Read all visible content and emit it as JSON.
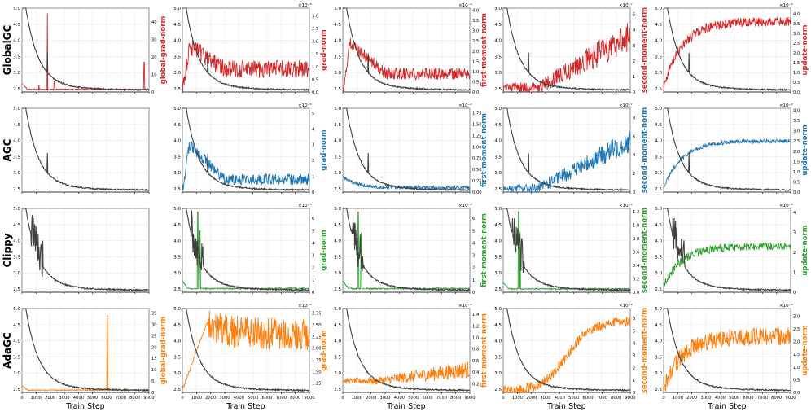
{
  "chart_data": {
    "type": "line",
    "title": "",
    "shared_xlabel": "Train Step",
    "x_ticks": [
      0,
      1000,
      2000,
      3000,
      4000,
      5000,
      6000,
      7000,
      8000,
      9000
    ],
    "xlim": [
      0,
      9000
    ],
    "loss_axis": {
      "ylim": [
        2.4,
        5.0
      ],
      "ticks": [
        "2.5",
        "3.0",
        "3.5",
        "4.0",
        "4.5",
        "5.0"
      ],
      "series_color": "#404040"
    },
    "rows": [
      {
        "label": "GlobalGC",
        "color": "#d62728",
        "panels": [
          {
            "metric": "global-grad-norm",
            "multiplier": "",
            "ticks": [
              "0",
              "10",
              "20",
              "30",
              "40"
            ],
            "ymax": 48,
            "shape": "flat_spikes",
            "base": 1.5,
            "spikes": [
              [
                1800,
                45
              ],
              [
                1200,
                4
              ],
              [
                2300,
                6
              ],
              [
                8650,
                17
              ]
            ]
          },
          {
            "metric": "grad-norm",
            "multiplier": "×10⁻³",
            "ticks": [
              "0.0",
              "0.5",
              "1.0",
              "1.5",
              "2.0",
              "2.5",
              "3.0"
            ],
            "ymax": 3.3,
            "shape": "early_peak_flat",
            "peak": 1.8,
            "tail": 0.9,
            "noise": 0.35
          },
          {
            "metric": "first-moment-norm",
            "multiplier": "×10⁻⁴",
            "ticks": [
              "0.0",
              "0.5",
              "1.0",
              "1.5",
              "2.0",
              "2.5",
              "3.0",
              "3.5",
              "4.0"
            ],
            "ymax": 4.1,
            "shape": "early_peak_flat",
            "peak": 2.4,
            "tail": 0.9,
            "noise": 0.3
          },
          {
            "metric": "second-moment-norm",
            "multiplier": "×10⁻⁷",
            "ticks": [
              "0",
              "1",
              "2",
              "3",
              "4",
              "5"
            ],
            "ymax": 5.4,
            "shape": "growth_noisy",
            "start": 0.3,
            "end": 3.6,
            "noise": 0.8
          },
          {
            "metric": "update-norm",
            "multiplier": "×10⁻²",
            "ticks": [
              "0.0",
              "0.5",
              "1.0",
              "1.5",
              "2.0",
              "2.5",
              "3.0",
              "3.5",
              "4.0"
            ],
            "ymax": 4.3,
            "shape": "saturating",
            "start": 0.2,
            "end": 3.6,
            "noise": 0.25
          }
        ]
      },
      {
        "label": "AGC",
        "color": "#1f77b4",
        "panels": [
          {
            "metric": "",
            "multiplier": "",
            "ticks": [],
            "ymax": 1,
            "shape": "none"
          },
          {
            "metric": "grad-norm",
            "multiplier": "×10⁻³",
            "ticks": [
              "0",
              "1",
              "2",
              "3",
              "4",
              "5"
            ],
            "ymax": 5.3,
            "shape": "early_peak_flat",
            "peak": 3.0,
            "tail": 0.8,
            "noise": 0.35
          },
          {
            "metric": "first-moment-norm",
            "multiplier": "×10⁻⁴",
            "ticks": [
              "0.00",
              "0.25",
              "0.50",
              "0.75",
              "1.00",
              "1.25",
              "1.50",
              "1.75"
            ],
            "ymax": 1.85,
            "shape": "decay_flat",
            "peak": 0.35,
            "tail": 0.1,
            "noise": 0.04
          },
          {
            "metric": "second-moment-norm",
            "multiplier": "×10⁻⁷",
            "ticks": [
              "0",
              "2",
              "4",
              "6",
              "8"
            ],
            "ymax": 9.0,
            "shape": "growth_noisy",
            "start": 0.4,
            "end": 5.5,
            "noise": 1.0
          },
          {
            "metric": "update-norm",
            "multiplier": "×10⁻²",
            "ticks": [
              "0.0",
              "0.5",
              "1.0",
              "1.5",
              "2.0",
              "2.5",
              "3.0",
              "3.5",
              "4.0"
            ],
            "ymax": 4.1,
            "shape": "saturating",
            "start": 0.2,
            "end": 2.5,
            "noise": 0.1
          }
        ]
      },
      {
        "label": "Clippy",
        "color": "#2ca02c",
        "panels": [
          {
            "metric": "",
            "multiplier": "",
            "ticks": [],
            "ymax": 1,
            "shape": "none"
          },
          {
            "metric": "grad-norm",
            "multiplier": "×10⁻³",
            "ticks": [
              "0",
              "1",
              "2",
              "3",
              "4",
              "5",
              "6"
            ],
            "ymax": 6.8,
            "shape": "flat_spikes",
            "base": 0.3,
            "spikes": [
              [
                1100,
                6.5
              ],
              [
                1250,
                5.0
              ]
            ]
          },
          {
            "metric": "first-moment-norm",
            "multiplier": "×10⁻³",
            "ticks": [
              "0",
              "1",
              "2",
              "3",
              "4",
              "5",
              "6"
            ],
            "ymax": 6.8,
            "shape": "flat_spikes",
            "base": 0.3,
            "spikes": [
              [
                1100,
                6.5
              ],
              [
                1300,
                4.8
              ]
            ]
          },
          {
            "metric": "second-moment-norm",
            "multiplier": "×10⁻⁵",
            "ticks": [
              "0.0",
              "0.2",
              "0.4",
              "0.6",
              "0.8",
              "1.0",
              "1.2"
            ],
            "ymax": 1.25,
            "shape": "flat_spikes",
            "base": 0.05,
            "spikes": [
              [
                1100,
                1.2
              ],
              [
                1200,
                0.9
              ]
            ]
          },
          {
            "metric": "update-norm",
            "multiplier": "×10⁻³",
            "ticks": [
              "0",
              "1",
              "2",
              "3",
              "4"
            ],
            "ymax": 4.2,
            "shape": "saturating",
            "start": 0.3,
            "end": 2.3,
            "noise": 0.2
          }
        ]
      },
      {
        "label": "AdaGC",
        "color": "#ff7f0e",
        "panels": [
          {
            "metric": "global-grad-norm",
            "multiplier": "",
            "ticks": [
              "0",
              "5",
              "10",
              "15",
              "20",
              "25",
              "30",
              "35"
            ],
            "ymax": 37,
            "shape": "flat_spikes",
            "base": 1.0,
            "spikes": [
              [
                6050,
                34
              ]
            ]
          },
          {
            "metric": "grad-norm",
            "multiplier": "×10⁻⁴",
            "ticks": [
              "1.25",
              "1.50",
              "1.75",
              "2.00",
              "2.25",
              "2.50",
              "2.75"
            ],
            "ymax": 2.85,
            "ymin": 1.05,
            "shape": "ramp_then_noisy",
            "start": 1.1,
            "end": 2.3,
            "noise": 0.35
          },
          {
            "metric": "first-moment-norm",
            "multiplier": "×10⁻⁴",
            "ticks": [
              "0.2",
              "0.4",
              "0.6",
              "0.8",
              "1.0",
              "1.2",
              "1.4"
            ],
            "ymax": 1.5,
            "ymin": 0.05,
            "shape": "growth_noisy",
            "start": 0.25,
            "end": 0.45,
            "noise": 0.12
          },
          {
            "metric": "second-moment-norm",
            "multiplier": "×10⁻⁸",
            "ticks": [
              "0",
              "1",
              "2",
              "3",
              "4",
              "5",
              "6"
            ],
            "ymax": 6.8,
            "shape": "late_sigmoid",
            "start": 0.1,
            "end": 5.8,
            "noise": 0.4
          },
          {
            "metric": "update-norm",
            "multiplier": "×10⁻³",
            "ticks": [
              "0.0",
              "0.5",
              "1.0",
              "1.5",
              "2.0",
              "2.5",
              "3.0"
            ],
            "ymax": 3.3,
            "shape": "saturating",
            "start": 0.1,
            "end": 2.2,
            "noise": 0.35
          }
        ]
      }
    ]
  }
}
